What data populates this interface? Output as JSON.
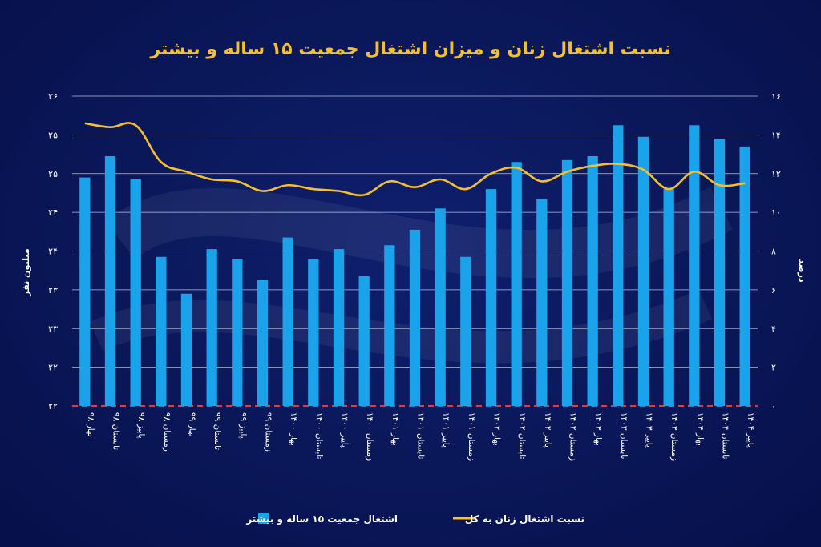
{
  "colors": {
    "background": "#0a1758",
    "bar": "#1aa3ea",
    "line": "#f5c02a",
    "title": "#f5c02a",
    "baseline": "#e23b3b"
  },
  "chart_data": {
    "type": "bar",
    "title": "نسبت اشتغال زنان و میزان اشتغال جمعیت ۱۵ ساله و بیشتر",
    "ylabel_left": "میلیون نفر",
    "ylabel_right": "درصد",
    "left_axis_ticks": [
      "۲۶",
      "۲۵",
      "۲۵",
      "۲۴",
      "۲۴",
      "۲۳",
      "۲۳",
      "۲۲",
      "۲۲"
    ],
    "right_axis_ticks": [
      "۱۶",
      "۱۴",
      "۱۲",
      "۱۰",
      "۸",
      "۶",
      "۴",
      "۲",
      "۰"
    ],
    "ylim_right": [
      0,
      16
    ],
    "grid": "horizontal",
    "legend_position": "bottom",
    "categories": [
      "بهار ۹۸",
      "تابستان ۹۸",
      "پاییز ۹۸",
      "زمستان ۹۸",
      "بهار ۹۹",
      "تابستان ۹۹",
      "پاییز ۹۹",
      "زمستان ۹۹",
      "بهار ۱۴۰۰",
      "تابستان ۱۴۰۰",
      "پاییز ۱۴۰۰",
      "زمستان ۱۴۰۰",
      "بهار ۱۴۰۱",
      "تابستان ۱۴۰۱",
      "پاییز ۱۴۰۱",
      "زمستان ۱۴۰۱",
      "بهار ۱۴۰۲",
      "تابستان ۱۴۰۲",
      "پاییز ۱۴۰۲",
      "زمستان ۱۴۰۲",
      "بهار ۱۴۰۳",
      "تابستان ۱۴۰۳",
      "پاییز ۱۴۰۳",
      "زمستان ۱۴۰۳",
      "بهار ۱۴۰۴",
      "تابستان ۱۴۰۴",
      "پاییز ۱۴۰۴"
    ],
    "series": [
      {
        "name": "اشتغال جمعیت ۱۵ ساله و بیشتر",
        "type": "bar",
        "axis": "left",
        "values": [
          11.8,
          12.9,
          11.7,
          7.7,
          5.8,
          8.1,
          7.6,
          6.5,
          8.7,
          7.6,
          8.1,
          6.7,
          8.3,
          9.1,
          10.2,
          7.7,
          11.2,
          12.6,
          10.7,
          12.7,
          12.9,
          14.5,
          13.9,
          11.2,
          14.5,
          13.8,
          13.4
        ]
      },
      {
        "name": "نسبت اشتغال زنان به کل",
        "type": "line",
        "axis": "right",
        "values": [
          14.6,
          14.4,
          14.5,
          12.6,
          12.1,
          11.7,
          11.6,
          11.1,
          11.4,
          11.2,
          11.1,
          10.9,
          11.6,
          11.3,
          11.7,
          11.2,
          12.0,
          12.3,
          11.6,
          12.1,
          12.4,
          12.5,
          12.2,
          11.2,
          12.1,
          11.4,
          11.5
        ]
      }
    ]
  }
}
